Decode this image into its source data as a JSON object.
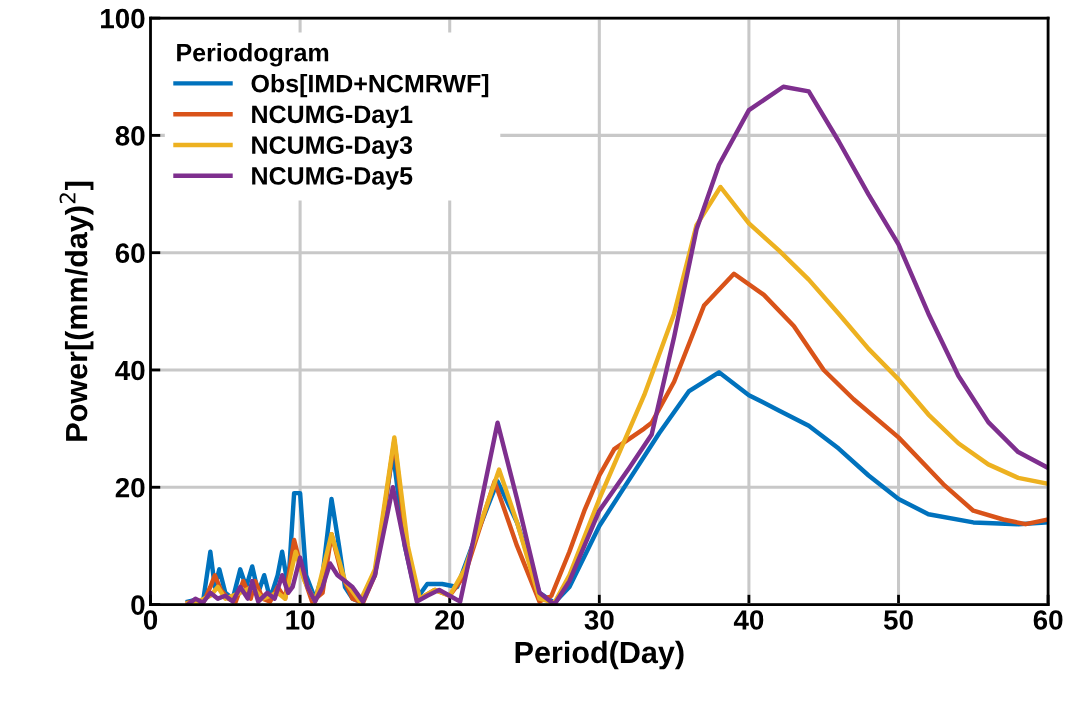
{
  "chart_data": {
    "type": "line",
    "xlabel": "Period(Day)",
    "ylabel": "Power[(mm/day)$^{2}$]",
    "legend_title": "Periodogram",
    "legend": "top left",
    "grid": true,
    "marker": "none",
    "line_style": "solid",
    "xlim": [
      0,
      60
    ],
    "xticks": [
      0,
      10,
      20,
      30,
      40,
      50,
      60
    ],
    "ylim": [
      0,
      100
    ],
    "yticks": [
      0,
      20,
      40,
      60,
      80,
      100
    ],
    "series": [
      {
        "name": "Obs[IMD+NCMRWF]",
        "color": "#0072bd",
        "x": [
          2.5,
          3,
          3.5,
          4,
          4.3,
          4.6,
          5,
          5.5,
          6,
          6.4,
          6.8,
          7.2,
          7.6,
          8,
          8.5,
          8.8,
          9.2,
          9.6,
          10,
          10.4,
          11,
          11.5,
          12.1,
          12.6,
          13,
          13.5,
          14,
          15,
          16.2,
          17,
          17.8,
          18.5,
          19.5,
          20.5,
          21.5,
          23.2,
          24.5,
          26,
          27,
          28,
          30,
          32,
          34,
          36,
          38,
          40,
          42,
          44,
          46,
          48,
          50,
          52,
          55,
          58,
          60
        ],
        "values": [
          0.5,
          0.8,
          0.3,
          9,
          3,
          6,
          2,
          1,
          6,
          3,
          6.5,
          2,
          5,
          1,
          5,
          9,
          3,
          19,
          19,
          5,
          1,
          5,
          18,
          10,
          3,
          1,
          0.5,
          5,
          26,
          10,
          1,
          3.5,
          3.5,
          3,
          10,
          21,
          14,
          2,
          0.3,
          3,
          13.4,
          21.3,
          29.2,
          36.4,
          39.6,
          35.7,
          33.1,
          30.5,
          26.6,
          22,
          18,
          15.4,
          14,
          13.7,
          14
        ]
      },
      {
        "name": "NCUMG-Day1",
        "color": "#d95319",
        "x": [
          2.5,
          3,
          3.5,
          4,
          4.3,
          4.7,
          5.2,
          5.7,
          6.2,
          6.7,
          7,
          7.5,
          8,
          8.5,
          9,
          9.6,
          10.2,
          10.8,
          11.5,
          12.1,
          12.8,
          13.5,
          14.2,
          15,
          16.3,
          17.2,
          18,
          19,
          20,
          21,
          23,
          24.5,
          26,
          26.8,
          28,
          29,
          30,
          31,
          33,
          33.5,
          35,
          37,
          39,
          41,
          43,
          45,
          47,
          50,
          53,
          55,
          57,
          58.5,
          60
        ],
        "values": [
          0.3,
          0.6,
          0.2,
          3,
          5,
          2.5,
          1,
          0.5,
          4,
          1,
          4,
          1,
          0.5,
          3,
          1,
          11,
          5,
          0.5,
          2,
          12,
          5,
          1,
          0.3,
          5,
          28,
          8,
          1,
          2.5,
          1.5,
          5,
          21,
          10,
          0.5,
          1.5,
          9,
          16,
          22,
          26.5,
          30,
          31,
          38,
          51,
          56.4,
          52.8,
          47.5,
          40,
          35,
          28.5,
          20.5,
          16,
          14.5,
          13.7,
          14.5
        ]
      },
      {
        "name": "NCUMG-Day3",
        "color": "#edb120",
        "x": [
          2.5,
          3,
          4,
          4.5,
          5,
          6,
          6.8,
          7.5,
          8.5,
          9,
          9.7,
          10.3,
          11,
          12.1,
          13,
          14,
          15,
          16.3,
          17.2,
          18,
          19,
          20,
          21,
          23.3,
          24.5,
          26,
          27,
          28,
          30,
          33,
          35,
          36.5,
          38.1,
          40,
          42,
          44,
          46,
          48,
          50,
          52,
          54,
          56,
          58,
          60
        ],
        "values": [
          0.2,
          0.3,
          1.5,
          3,
          1,
          2,
          3,
          1,
          2,
          1,
          9,
          4,
          0.5,
          12,
          4,
          0.5,
          6,
          28.5,
          10,
          1,
          2.5,
          1.5,
          6,
          23,
          14,
          1,
          0.3,
          5,
          18,
          35.7,
          49.6,
          64.7,
          71.2,
          65,
          60.4,
          55.4,
          49.6,
          43.6,
          38.4,
          32.4,
          27.5,
          23.9,
          21.6,
          20.6
        ]
      },
      {
        "name": "NCUMG-Day5",
        "color": "#7e2f8e",
        "x": [
          2.5,
          3,
          3.5,
          4,
          4.5,
          5,
          5.5,
          6,
          6.5,
          6.8,
          7.2,
          7.8,
          8.3,
          8.8,
          9.2,
          9.5,
          10,
          10.5,
          11,
          11.5,
          12,
          12.5,
          13,
          13.5,
          14.2,
          15,
          16.2,
          17,
          17.8,
          18.5,
          19.3,
          20,
          20.7,
          21.5,
          23.2,
          24.5,
          26,
          27,
          28,
          29,
          30,
          32,
          33.5,
          35,
          36.5,
          38,
          40,
          42.3,
          44,
          46,
          48,
          50,
          52,
          54,
          56,
          58,
          60
        ],
        "values": [
          0,
          1,
          0.3,
          2,
          1,
          1.5,
          0.5,
          3,
          1,
          4,
          0.5,
          2,
          1,
          5,
          2,
          3,
          8,
          3,
          0.5,
          3,
          7,
          5,
          4,
          3,
          0.5,
          5,
          20,
          10,
          0.5,
          1.5,
          2.5,
          1.5,
          0.5,
          10,
          31,
          18,
          2,
          0,
          4,
          10,
          16,
          23.3,
          29,
          45.6,
          64,
          75,
          84.3,
          88.3,
          87.5,
          79,
          69.9,
          61.4,
          49.6,
          39,
          31.1,
          26,
          23.3
        ]
      }
    ]
  }
}
